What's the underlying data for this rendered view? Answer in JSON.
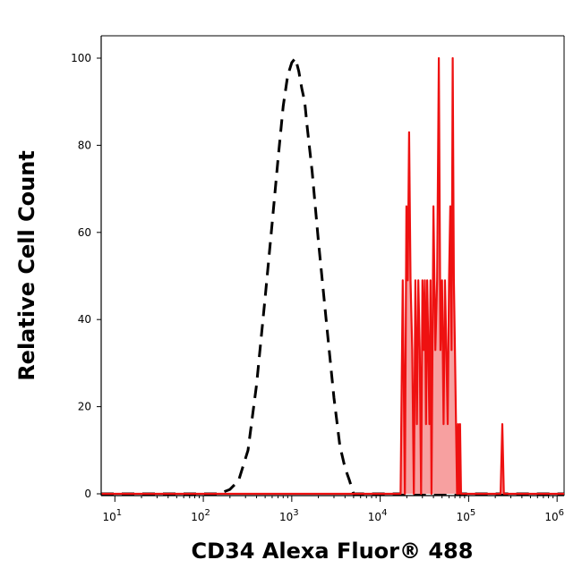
{
  "chart_data": {
    "type": "area",
    "xlabel": "CD34 Alexa Fluor® 488",
    "ylabel": "Relative Cell Count",
    "x_scale": "log",
    "xlim": [
      7,
      1200000
    ],
    "ylim": [
      0,
      100
    ],
    "x_ticks": [
      {
        "value": 10,
        "base": "10",
        "exp": "1"
      },
      {
        "value": 100,
        "base": "10",
        "exp": "2"
      },
      {
        "value": 1000,
        "base": "10",
        "exp": "3"
      },
      {
        "value": 10000,
        "base": "10",
        "exp": "4"
      },
      {
        "value": 100000,
        "base": "10",
        "exp": "5"
      },
      {
        "value": 1000000,
        "base": "10",
        "exp": "6"
      }
    ],
    "y_ticks": [
      "0",
      "20",
      "40",
      "60",
      "80",
      "100"
    ],
    "grid": false,
    "legend": "none",
    "series": [
      {
        "style": "dashed",
        "color": "#000000",
        "x": [
          7,
          150,
          200,
          250,
          320,
          400,
          500,
          600,
          700,
          800,
          900,
          1000,
          1100,
          1200,
          1300,
          1400,
          1500,
          1700,
          2000,
          2500,
          3000,
          3500,
          4000,
          4500,
          5000,
          6000,
          1200000
        ],
        "y": [
          0,
          0,
          1,
          3,
          10,
          25,
          45,
          62,
          77,
          89,
          96,
          99,
          100,
          97,
          93,
          90,
          84,
          74,
          58,
          38,
          22,
          11,
          6,
          3,
          0,
          0,
          0
        ]
      },
      {
        "style": "solid-filled",
        "color": "#ee1111",
        "fill": "#f7a0a0",
        "x": [
          7,
          17000,
          18000,
          19000,
          19800,
          20500,
          21200,
          22000,
          23000,
          24000,
          25000,
          26000,
          27000,
          28000,
          29000,
          30000,
          31000,
          32000,
          33000,
          34000,
          35000,
          36000,
          37000,
          38000,
          40000,
          42000,
          44000,
          46000,
          48000,
          50000,
          52000,
          54000,
          56000,
          58000,
          60000,
          62000,
          64000,
          66000,
          68000,
          70000,
          72000,
          74000,
          76000,
          78000,
          80000,
          82000,
          84000,
          86000,
          88000,
          92000,
          96000,
          100000,
          104000,
          108000,
          112000,
          118000,
          200000,
          230000,
          240000,
          250000,
          280000,
          1200000
        ],
        "y": [
          0,
          0,
          49,
          0,
          66,
          49,
          83,
          49,
          33,
          0,
          49,
          16,
          49,
          33,
          0,
          49,
          33,
          49,
          16,
          49,
          33,
          16,
          49,
          0,
          66,
          33,
          49,
          100,
          33,
          49,
          16,
          49,
          33,
          16,
          49,
          66,
          33,
          100,
          49,
          33,
          16,
          0,
          16,
          0,
          16,
          0,
          0,
          0,
          0,
          0,
          0,
          0,
          0,
          0,
          0,
          0,
          0,
          0,
          16,
          0,
          0,
          0
        ]
      }
    ]
  }
}
